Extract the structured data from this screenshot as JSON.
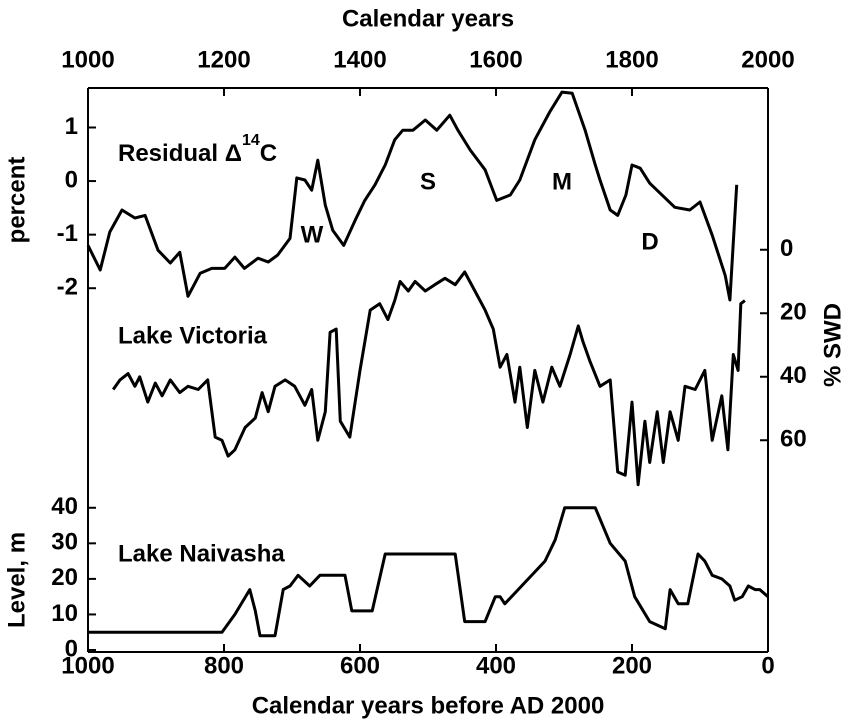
{
  "chart_data": {
    "type": "line",
    "xlabel": "Calendar years before AD 2000",
    "x2label": "Calendar years",
    "xlim": [
      1000,
      0
    ],
    "xticks": [
      1000,
      800,
      600,
      400,
      200,
      0
    ],
    "x2lim": [
      1000,
      2000
    ],
    "x2ticks": [
      1000,
      1200,
      1400,
      1600,
      1800,
      2000
    ],
    "ylabel": "percent",
    "ylim": [
      -2.5,
      1.7
    ],
    "yticks": [
      1,
      0,
      -1,
      -2
    ],
    "y2label": "% SWD",
    "y2lim": [
      -10,
      70
    ],
    "y2_inverted": true,
    "y2ticks": [
      0,
      20,
      40,
      60
    ],
    "y3label": "Level, m",
    "y3lim": [
      0,
      45
    ],
    "y3ticks": [
      0,
      10,
      20,
      30,
      40
    ],
    "color": "#000000",
    "annotations": [
      "W",
      "S",
      "M",
      "D"
    ],
    "series": [
      {
        "label_parts": [
          "Residual Δ",
          "14",
          "C"
        ],
        "axis": "y",
        "x": [
          1000,
          982,
          968,
          950,
          931,
          916,
          897,
          879,
          865,
          853,
          835,
          818,
          799,
          784,
          770,
          750,
          735,
          721,
          703,
          693,
          681,
          671,
          662,
          651,
          640,
          624,
          607,
          593,
          578,
          563,
          549,
          537,
          522,
          504,
          487,
          468,
          456,
          438,
          416,
          399,
          379,
          365,
          343,
          321,
          303,
          288,
          269,
          254,
          247,
          232,
          221,
          209,
          200,
          188,
          174,
          160,
          137,
          115,
          100,
          82,
          63,
          56,
          46
        ],
        "values": [
          -1.2,
          -1.66,
          -0.95,
          -0.54,
          -0.69,
          -0.64,
          -1.29,
          -1.53,
          -1.33,
          -2.15,
          -1.72,
          -1.63,
          -1.63,
          -1.42,
          -1.63,
          -1.44,
          -1.51,
          -1.38,
          -1.07,
          0.06,
          0.02,
          -0.17,
          0.39,
          -0.45,
          -0.92,
          -1.2,
          -0.73,
          -0.36,
          -0.07,
          0.3,
          0.77,
          0.95,
          0.95,
          1.14,
          0.95,
          1.23,
          0.95,
          0.58,
          0.21,
          -0.36,
          -0.26,
          0.02,
          0.77,
          1.29,
          1.66,
          1.64,
          0.95,
          0.3,
          0.02,
          -0.54,
          -0.64,
          -0.26,
          0.3,
          0.24,
          -0.04,
          -0.21,
          -0.49,
          -0.54,
          -0.39,
          -1.01,
          -1.76,
          -2.22,
          -0.07
        ]
      },
      {
        "name": "Lake Victoria",
        "axis": "y2",
        "x": [
          963,
          953,
          941,
          931,
          924,
          912,
          901,
          891,
          879,
          865,
          853,
          838,
          824,
          813,
          803,
          794,
          784,
          769,
          754,
          744,
          735,
          725,
          710,
          696,
          681,
          671,
          662,
          651,
          644,
          635,
          629,
          615,
          600,
          585,
          571,
          559,
          549,
          541,
          529,
          519,
          504,
          490,
          475,
          460,
          446,
          431,
          416,
          404,
          394,
          384,
          372,
          365,
          354,
          343,
          331,
          318,
          306,
          291,
          279,
          272,
          262,
          247,
          232,
          221,
          210,
          200,
          191,
          181,
          174,
          163,
          154,
          144,
          132,
          122,
          107,
          93,
          82,
          68,
          59,
          51,
          44,
          40,
          34
        ],
        "values": [
          44,
          41,
          39,
          43,
          40,
          48,
          42,
          46,
          41,
          45,
          43,
          44,
          41,
          59,
          60,
          65,
          63,
          56,
          53,
          45,
          51,
          43,
          41,
          43,
          49,
          44,
          60,
          51,
          26,
          25,
          54,
          59,
          38,
          19,
          17,
          22,
          16,
          10,
          13,
          10,
          13,
          11,
          9,
          11,
          7,
          13,
          19,
          25,
          37,
          33,
          48,
          37,
          56,
          38,
          48,
          37,
          43,
          33,
          24,
          29,
          35,
          43,
          41,
          70,
          71,
          48,
          74,
          54,
          67,
          51,
          67,
          51,
          60,
          43,
          44,
          38,
          60,
          46,
          63,
          33,
          38,
          17,
          16
        ]
      },
      {
        "name": "Lake Naivasha",
        "axis": "y3",
        "x": [
          1000,
          803,
          784,
          762,
          754,
          747,
          725,
          713,
          703,
          691,
          674,
          659,
          622,
          612,
          582,
          563,
          460,
          446,
          416,
          401,
          394,
          387,
          328,
          313,
          299,
          254,
          232,
          210,
          196,
          174,
          151,
          144,
          132,
          118,
          103,
          93,
          82,
          68,
          56,
          49,
          38,
          29,
          19,
          12,
          0
        ],
        "values": [
          5,
          5,
          10,
          17,
          11,
          4,
          4,
          17,
          18,
          21,
          18,
          21,
          21,
          11,
          11,
          27,
          27,
          8,
          8,
          15,
          15,
          13,
          25,
          31,
          40,
          40,
          30,
          25,
          15,
          8,
          6,
          17,
          13,
          13,
          27,
          25,
          21,
          20,
          18,
          14,
          15,
          18,
          17,
          17,
          15
        ]
      }
    ]
  }
}
